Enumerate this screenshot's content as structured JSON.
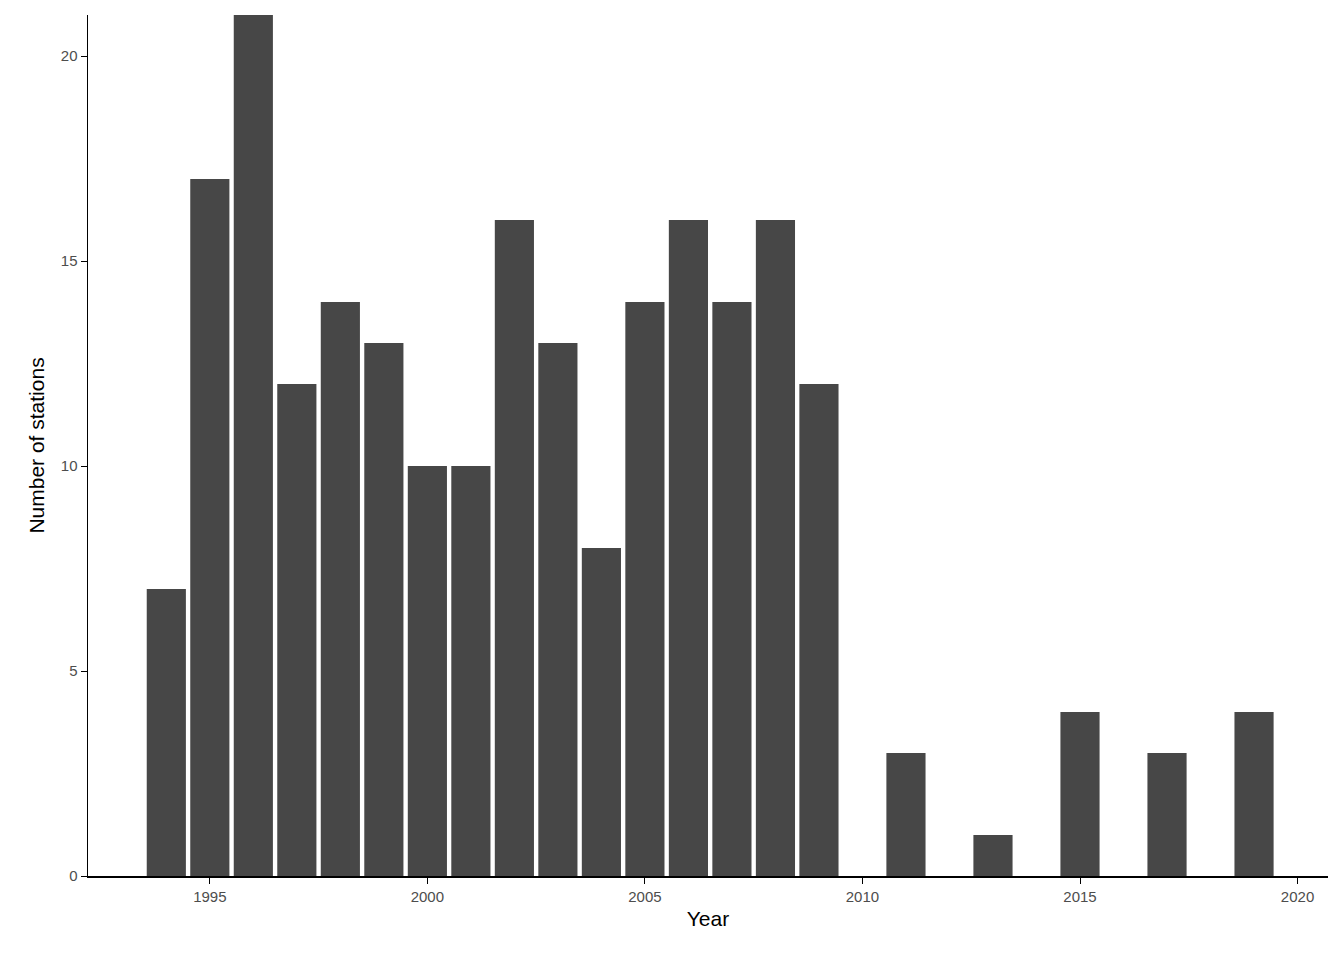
{
  "chart_data": {
    "type": "bar",
    "x_label": "Year",
    "y_label": "Number of stations",
    "x": [
      1994,
      1995,
      1996,
      1997,
      1998,
      1999,
      2000,
      2001,
      2002,
      2003,
      2004,
      2005,
      2006,
      2007,
      2008,
      2009,
      2011,
      2013,
      2015,
      2017,
      2019
    ],
    "values": [
      7,
      17,
      21,
      12,
      14,
      13,
      10,
      10,
      16,
      13,
      8,
      14,
      16,
      14,
      16,
      12,
      3,
      1,
      4,
      3,
      4
    ],
    "color": "#474747",
    "xlim": [
      1992.2,
      2020.7
    ],
    "xticks": [
      1995,
      2000,
      2005,
      2010,
      2015,
      2020
    ],
    "ylim": [
      0,
      21
    ],
    "yticks": [
      0,
      5,
      10,
      15,
      20
    ],
    "grid": false
  }
}
